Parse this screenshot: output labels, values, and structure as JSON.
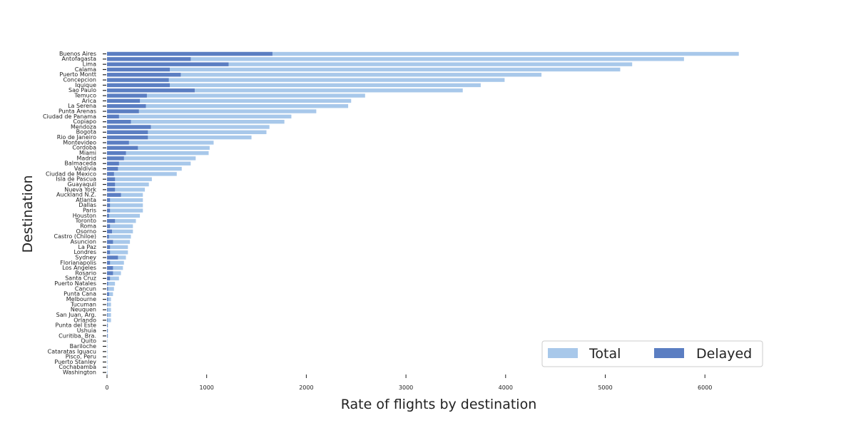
{
  "chart_data": {
    "type": "bar",
    "orientation": "horizontal",
    "xlabel": "Rate of flights by destination",
    "ylabel": "Destination",
    "xlim": [
      0,
      6600
    ],
    "xticks": [
      0,
      1000,
      2000,
      3000,
      4000,
      5000,
      6000
    ],
    "grid": false,
    "legend": {
      "placement": "bottom-right",
      "entries": [
        "Total",
        "Delayed"
      ]
    },
    "colors": {
      "Total": "#a8c8ea",
      "Delayed": "#5b7ec2"
    },
    "categories": [
      "Buenos Aires",
      "Antofagasta",
      "Lima",
      "Calama",
      "Puerto Montt",
      "Concepcion",
      "Iquique",
      "Sao Paulo",
      "Temuco",
      "Arica",
      "La Serena",
      "Punta Arenas",
      "Ciudad de Panama",
      "Copiapo",
      "Mendoza",
      "Bogota",
      "Rio de Janeiro",
      "Montevideo",
      "Cordoba",
      "Miami",
      "Madrid",
      "Balmaceda",
      "Valdivia",
      "Ciudad de Mexico",
      "Isla de Pascua",
      "Guayaquil",
      "Nueva York",
      "Auckland N.Z.",
      "Atlanta",
      "Dallas",
      "Paris",
      "Houston",
      "Toronto",
      "Roma",
      "Osorno",
      "Castro (Chiloe)",
      "Asuncion",
      "La Paz",
      "Londres",
      "Sydney",
      "Florianapolis",
      "Los Angeles",
      "Rosario",
      "Santa Cruz",
      "Puerto Natales",
      "Cancun",
      "Punta Cana",
      "Melbourne",
      "Tucuman",
      "Neuquen",
      "San Juan, Arg.",
      "Orlando",
      "Punta del Este",
      "Ushuia",
      "Curitiba, Bra.",
      "Quito",
      "Bariloche",
      "Cataratas Iguacu",
      "Pisco, Peru",
      "Puerto Stanley",
      "Cochabamba",
      "Washington"
    ],
    "series": [
      {
        "name": "Total",
        "values": [
          6340,
          5790,
          5270,
          5150,
          4360,
          3990,
          3750,
          3570,
          2590,
          2450,
          2420,
          2100,
          1850,
          1780,
          1630,
          1600,
          1450,
          1070,
          1030,
          1020,
          890,
          840,
          750,
          700,
          450,
          420,
          380,
          360,
          360,
          360,
          360,
          330,
          290,
          260,
          260,
          240,
          230,
          210,
          210,
          190,
          170,
          160,
          140,
          120,
          80,
          70,
          60,
          40,
          40,
          40,
          40,
          40,
          10,
          10,
          10,
          5,
          5,
          5,
          5,
          5,
          5,
          5
        ]
      },
      {
        "name": "Delayed",
        "values": [
          1660,
          840,
          1220,
          630,
          740,
          620,
          630,
          880,
          400,
          330,
          390,
          320,
          120,
          240,
          440,
          410,
          410,
          220,
          310,
          190,
          170,
          120,
          110,
          70,
          80,
          80,
          80,
          140,
          30,
          30,
          30,
          20,
          80,
          30,
          50,
          20,
          60,
          30,
          30,
          110,
          30,
          60,
          60,
          30,
          10,
          10,
          20,
          10,
          5,
          5,
          5,
          5,
          5,
          5,
          5,
          0,
          0,
          0,
          0,
          0,
          0,
          0
        ]
      }
    ]
  }
}
